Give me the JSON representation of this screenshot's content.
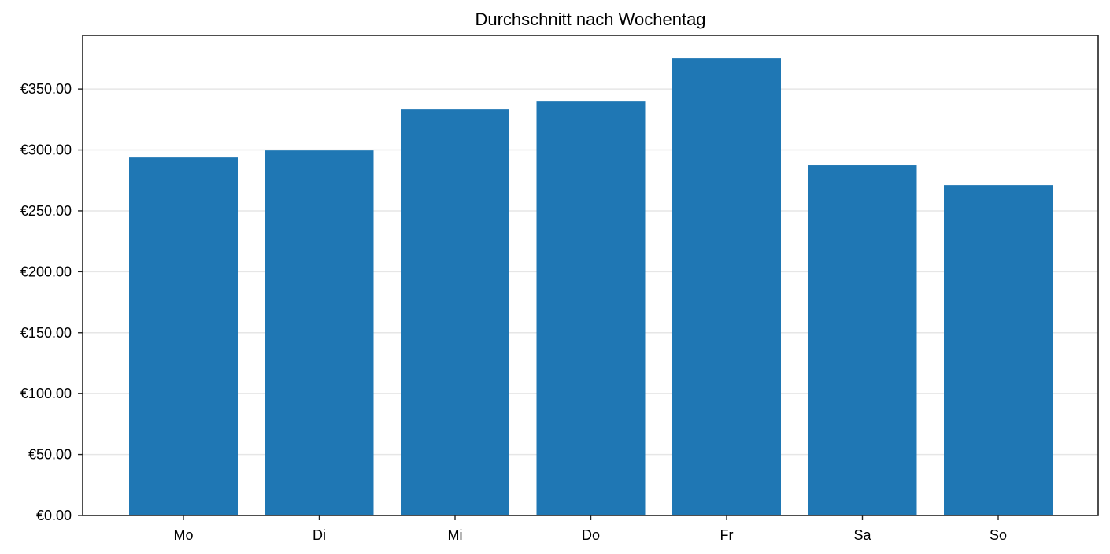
{
  "chart_data": {
    "type": "bar",
    "title": "Durchschnitt nach Wochentag",
    "xlabel": "",
    "ylabel": "",
    "categories": [
      "Mo",
      "Di",
      "Mi",
      "Do",
      "Fr",
      "Sa",
      "So"
    ],
    "values": [
      293.8,
      299.6,
      333.2,
      340.3,
      375.2,
      287.4,
      271.2
    ],
    "ylim": [
      0,
      394
    ],
    "yticks": [
      0,
      50,
      100,
      150,
      200,
      250,
      300,
      350
    ],
    "ytick_labels": [
      "€0.00",
      "€50.00",
      "€100.00",
      "€150.00",
      "€200.00",
      "€250.00",
      "€300.00",
      "€350.00"
    ],
    "grid": "y",
    "legend": null,
    "bar_color": "#1f77b4"
  },
  "colors": {
    "bar": "#1f77b4",
    "grid": "#e6e6e6",
    "axis": "#222222"
  }
}
